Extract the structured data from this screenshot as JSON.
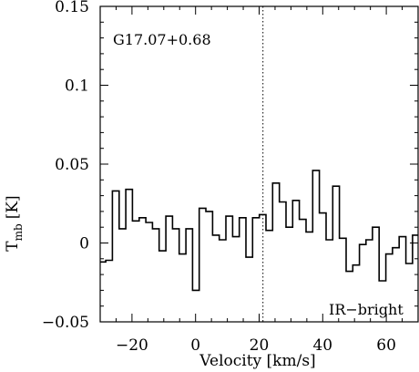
{
  "chart_data": {
    "type": "line",
    "title": "",
    "xlabel": "Velocity [km/s]",
    "ylabel_main": "T",
    "ylabel_sub": "mb",
    "ylabel_unit": "[K]",
    "xlim": [
      -30,
      70
    ],
    "ylim": [
      -0.05,
      0.15
    ],
    "x_ticks": [
      -20,
      0,
      20,
      40,
      60
    ],
    "x_tick_labels": [
      "−20",
      "0",
      "20",
      "40",
      "60"
    ],
    "y_ticks": [
      -0.05,
      0,
      0.05,
      0.1,
      0.15
    ],
    "y_tick_labels": [
      "−0.05",
      "0",
      "0.05",
      "0.1",
      "0.15"
    ],
    "source_label": "G17.07+0.68",
    "category_label": "IR−bright",
    "reference_velocity": 21.2,
    "line_color": "#000000",
    "series": [
      {
        "style": "histogram",
        "x": [
          -29.3,
          -27.2,
          -25.1,
          -23.0,
          -20.9,
          -18.8,
          -16.7,
          -14.6,
          -12.5,
          -10.4,
          -8.3,
          -6.2,
          -4.1,
          -2.0,
          0.1,
          2.2,
          4.3,
          6.4,
          8.5,
          10.6,
          12.7,
          14.8,
          16.9,
          19.0,
          21.1,
          23.2,
          25.3,
          27.4,
          29.5,
          31.6,
          33.7,
          35.8,
          37.9,
          40.0,
          42.1,
          44.2,
          46.3,
          48.4,
          50.5,
          52.6,
          54.6,
          56.7,
          58.8,
          60.9,
          63.0,
          65.1,
          67.2,
          69.3
        ],
        "y": [
          -0.012,
          -0.011,
          0.033,
          0.009,
          0.034,
          0.014,
          0.016,
          0.013,
          0.009,
          -0.005,
          0.017,
          0.009,
          -0.007,
          0.009,
          -0.03,
          0.022,
          0.02,
          0.005,
          0.002,
          0.017,
          0.004,
          0.016,
          -0.009,
          0.016,
          0.018,
          0.008,
          0.038,
          0.026,
          0.01,
          0.027,
          0.015,
          0.007,
          0.046,
          0.019,
          0.002,
          0.036,
          0.003,
          -0.018,
          -0.014,
          -0.001,
          0.002,
          0.01,
          -0.024,
          -0.007,
          -0.003,
          0.004,
          -0.013,
          0.005
        ]
      }
    ]
  }
}
